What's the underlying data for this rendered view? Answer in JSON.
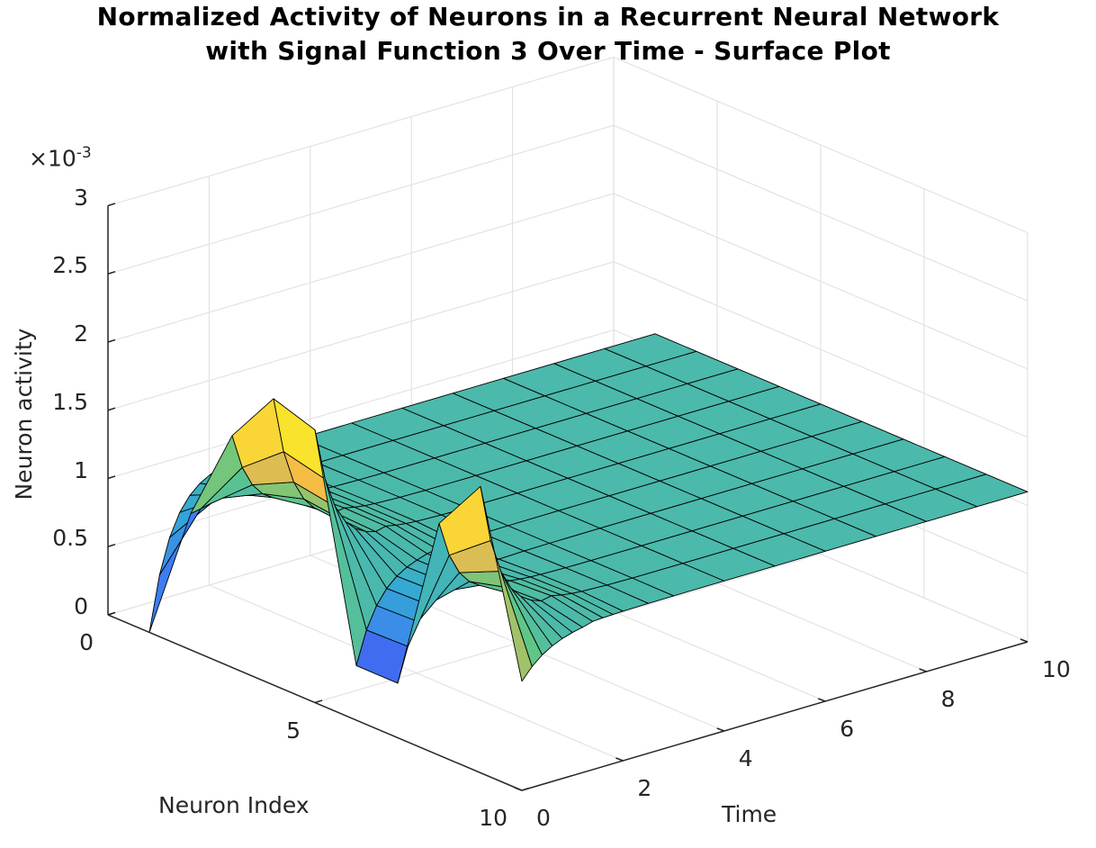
{
  "chart_data": {
    "type": "surface",
    "title": [
      "Normalized Activity of Neurons in a Recurrent Neural Network",
      "with Signal Function 3 Over Time - Surface Plot"
    ],
    "xlabel": "Neuron Index",
    "ylabel": "Time",
    "zlabel": "Neuron activity",
    "z_multiplier_label": "×10",
    "z_multiplier_exponent": "-3",
    "xlim": [
      1,
      10
    ],
    "ylim": [
      0,
      10
    ],
    "zlim": [
      0,
      0.003
    ],
    "x_ticks": [
      {
        "v": 0,
        "label": "0"
      },
      {
        "v": 5,
        "label": "5"
      },
      {
        "v": 10,
        "label": "10"
      }
    ],
    "y_ticks": [
      {
        "v": 0,
        "label": "0"
      },
      {
        "v": 2,
        "label": "2"
      },
      {
        "v": 4,
        "label": "4"
      },
      {
        "v": 6,
        "label": "6"
      },
      {
        "v": 8,
        "label": "8"
      },
      {
        "v": 10,
        "label": "10"
      }
    ],
    "z_ticks": [
      {
        "v": 0,
        "label": "0"
      },
      {
        "v": 0.0005,
        "label": "0.5"
      },
      {
        "v": 0.001,
        "label": "1"
      },
      {
        "v": 0.0015,
        "label": "1.5"
      },
      {
        "v": 0.002,
        "label": "2"
      },
      {
        "v": 0.0025,
        "label": "2.5"
      },
      {
        "v": 0.003,
        "label": "3"
      }
    ],
    "grid": true,
    "colormap": "parula",
    "neuron_index": [
      1,
      2,
      3,
      4,
      5,
      6,
      7,
      8,
      9,
      10
    ],
    "time": [
      0,
      0.2,
      0.4,
      0.6,
      0.8,
      1.0,
      1.2,
      1.4,
      1.6,
      1.8,
      2.0,
      2.5,
      3,
      4,
      5,
      6,
      7,
      8,
      9,
      10
    ],
    "activity_t0": [
      0.0,
      0.001,
      0.0017,
      0.0021,
      0.002,
      0.0004,
      0.0004,
      0.0017,
      0.0021,
      0.0008
    ],
    "steady_state_activity": 0.0011
  }
}
